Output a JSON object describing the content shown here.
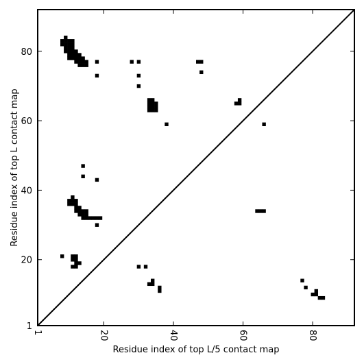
{
  "chart_data": {
    "type": "heatmap",
    "title": "",
    "xlabel": "Residue index of top L/5 contact map",
    "ylabel": "Residue index of top L contact map",
    "xlim": [
      1,
      92
    ],
    "ylim": [
      1,
      92
    ],
    "x_ticks": [
      1,
      20,
      40,
      60,
      80
    ],
    "y_ticks": [
      1,
      20,
      40,
      60,
      80
    ],
    "grid": false,
    "legend": "none",
    "colors": {
      "contact": "#000000",
      "background": "#ffffff",
      "diagonal": "#000000"
    },
    "diagonal": true,
    "upper_triangle_contacts": [
      [
        8,
        82
      ],
      [
        8,
        83
      ],
      [
        9,
        80
      ],
      [
        9,
        81
      ],
      [
        9,
        82
      ],
      [
        9,
        83
      ],
      [
        9,
        84
      ],
      [
        10,
        78
      ],
      [
        10,
        79
      ],
      [
        10,
        80
      ],
      [
        10,
        81
      ],
      [
        10,
        82
      ],
      [
        10,
        83
      ],
      [
        11,
        78
      ],
      [
        11,
        79
      ],
      [
        11,
        80
      ],
      [
        11,
        81
      ],
      [
        11,
        82
      ],
      [
        11,
        83
      ],
      [
        12,
        77
      ],
      [
        12,
        78
      ],
      [
        12,
        79
      ],
      [
        12,
        80
      ],
      [
        13,
        76
      ],
      [
        13,
        77
      ],
      [
        13,
        78
      ],
      [
        13,
        79
      ],
      [
        14,
        76
      ],
      [
        14,
        77
      ],
      [
        14,
        78
      ],
      [
        15,
        76
      ],
      [
        15,
        77
      ],
      [
        18,
        77
      ],
      [
        18,
        73
      ],
      [
        28,
        77
      ],
      [
        30,
        77
      ],
      [
        30,
        73
      ],
      [
        30,
        70
      ],
      [
        47,
        77
      ],
      [
        48,
        77
      ],
      [
        48,
        74
      ],
      [
        33,
        63
      ],
      [
        33,
        64
      ],
      [
        33,
        65
      ],
      [
        33,
        66
      ],
      [
        34,
        63
      ],
      [
        34,
        64
      ],
      [
        34,
        65
      ],
      [
        34,
        66
      ],
      [
        35,
        63
      ],
      [
        35,
        64
      ],
      [
        35,
        65
      ],
      [
        38,
        59
      ],
      [
        58,
        65
      ],
      [
        59,
        65
      ],
      [
        59,
        66
      ],
      [
        66,
        59
      ]
    ],
    "lower_triangle_contacts": [
      [
        10,
        36
      ],
      [
        10,
        37
      ],
      [
        11,
        36
      ],
      [
        11,
        37
      ],
      [
        11,
        38
      ],
      [
        12,
        34
      ],
      [
        12,
        35
      ],
      [
        12,
        36
      ],
      [
        12,
        37
      ],
      [
        13,
        33
      ],
      [
        13,
        34
      ],
      [
        13,
        35
      ],
      [
        14,
        32
      ],
      [
        14,
        33
      ],
      [
        14,
        34
      ],
      [
        15,
        32
      ],
      [
        15,
        33
      ],
      [
        15,
        34
      ],
      [
        16,
        32
      ],
      [
        17,
        32
      ],
      [
        18,
        32
      ],
      [
        19,
        32
      ],
      [
        18,
        30
      ],
      [
        14,
        47
      ],
      [
        14,
        44
      ],
      [
        18,
        43
      ],
      [
        8,
        21
      ],
      [
        11,
        20
      ],
      [
        11,
        21
      ],
      [
        12,
        20
      ],
      [
        12,
        21
      ],
      [
        11,
        18
      ],
      [
        12,
        18
      ],
      [
        12,
        19
      ],
      [
        13,
        19
      ],
      [
        30,
        18
      ],
      [
        32,
        18
      ],
      [
        33,
        13
      ],
      [
        34,
        13
      ],
      [
        34,
        14
      ],
      [
        36,
        11
      ],
      [
        36,
        12
      ],
      [
        64,
        34
      ],
      [
        65,
        34
      ],
      [
        66,
        34
      ],
      [
        77,
        14
      ],
      [
        78,
        12
      ],
      [
        80,
        10
      ],
      [
        81,
        10
      ],
      [
        81,
        11
      ],
      [
        82,
        9
      ],
      [
        83,
        9
      ]
    ]
  }
}
